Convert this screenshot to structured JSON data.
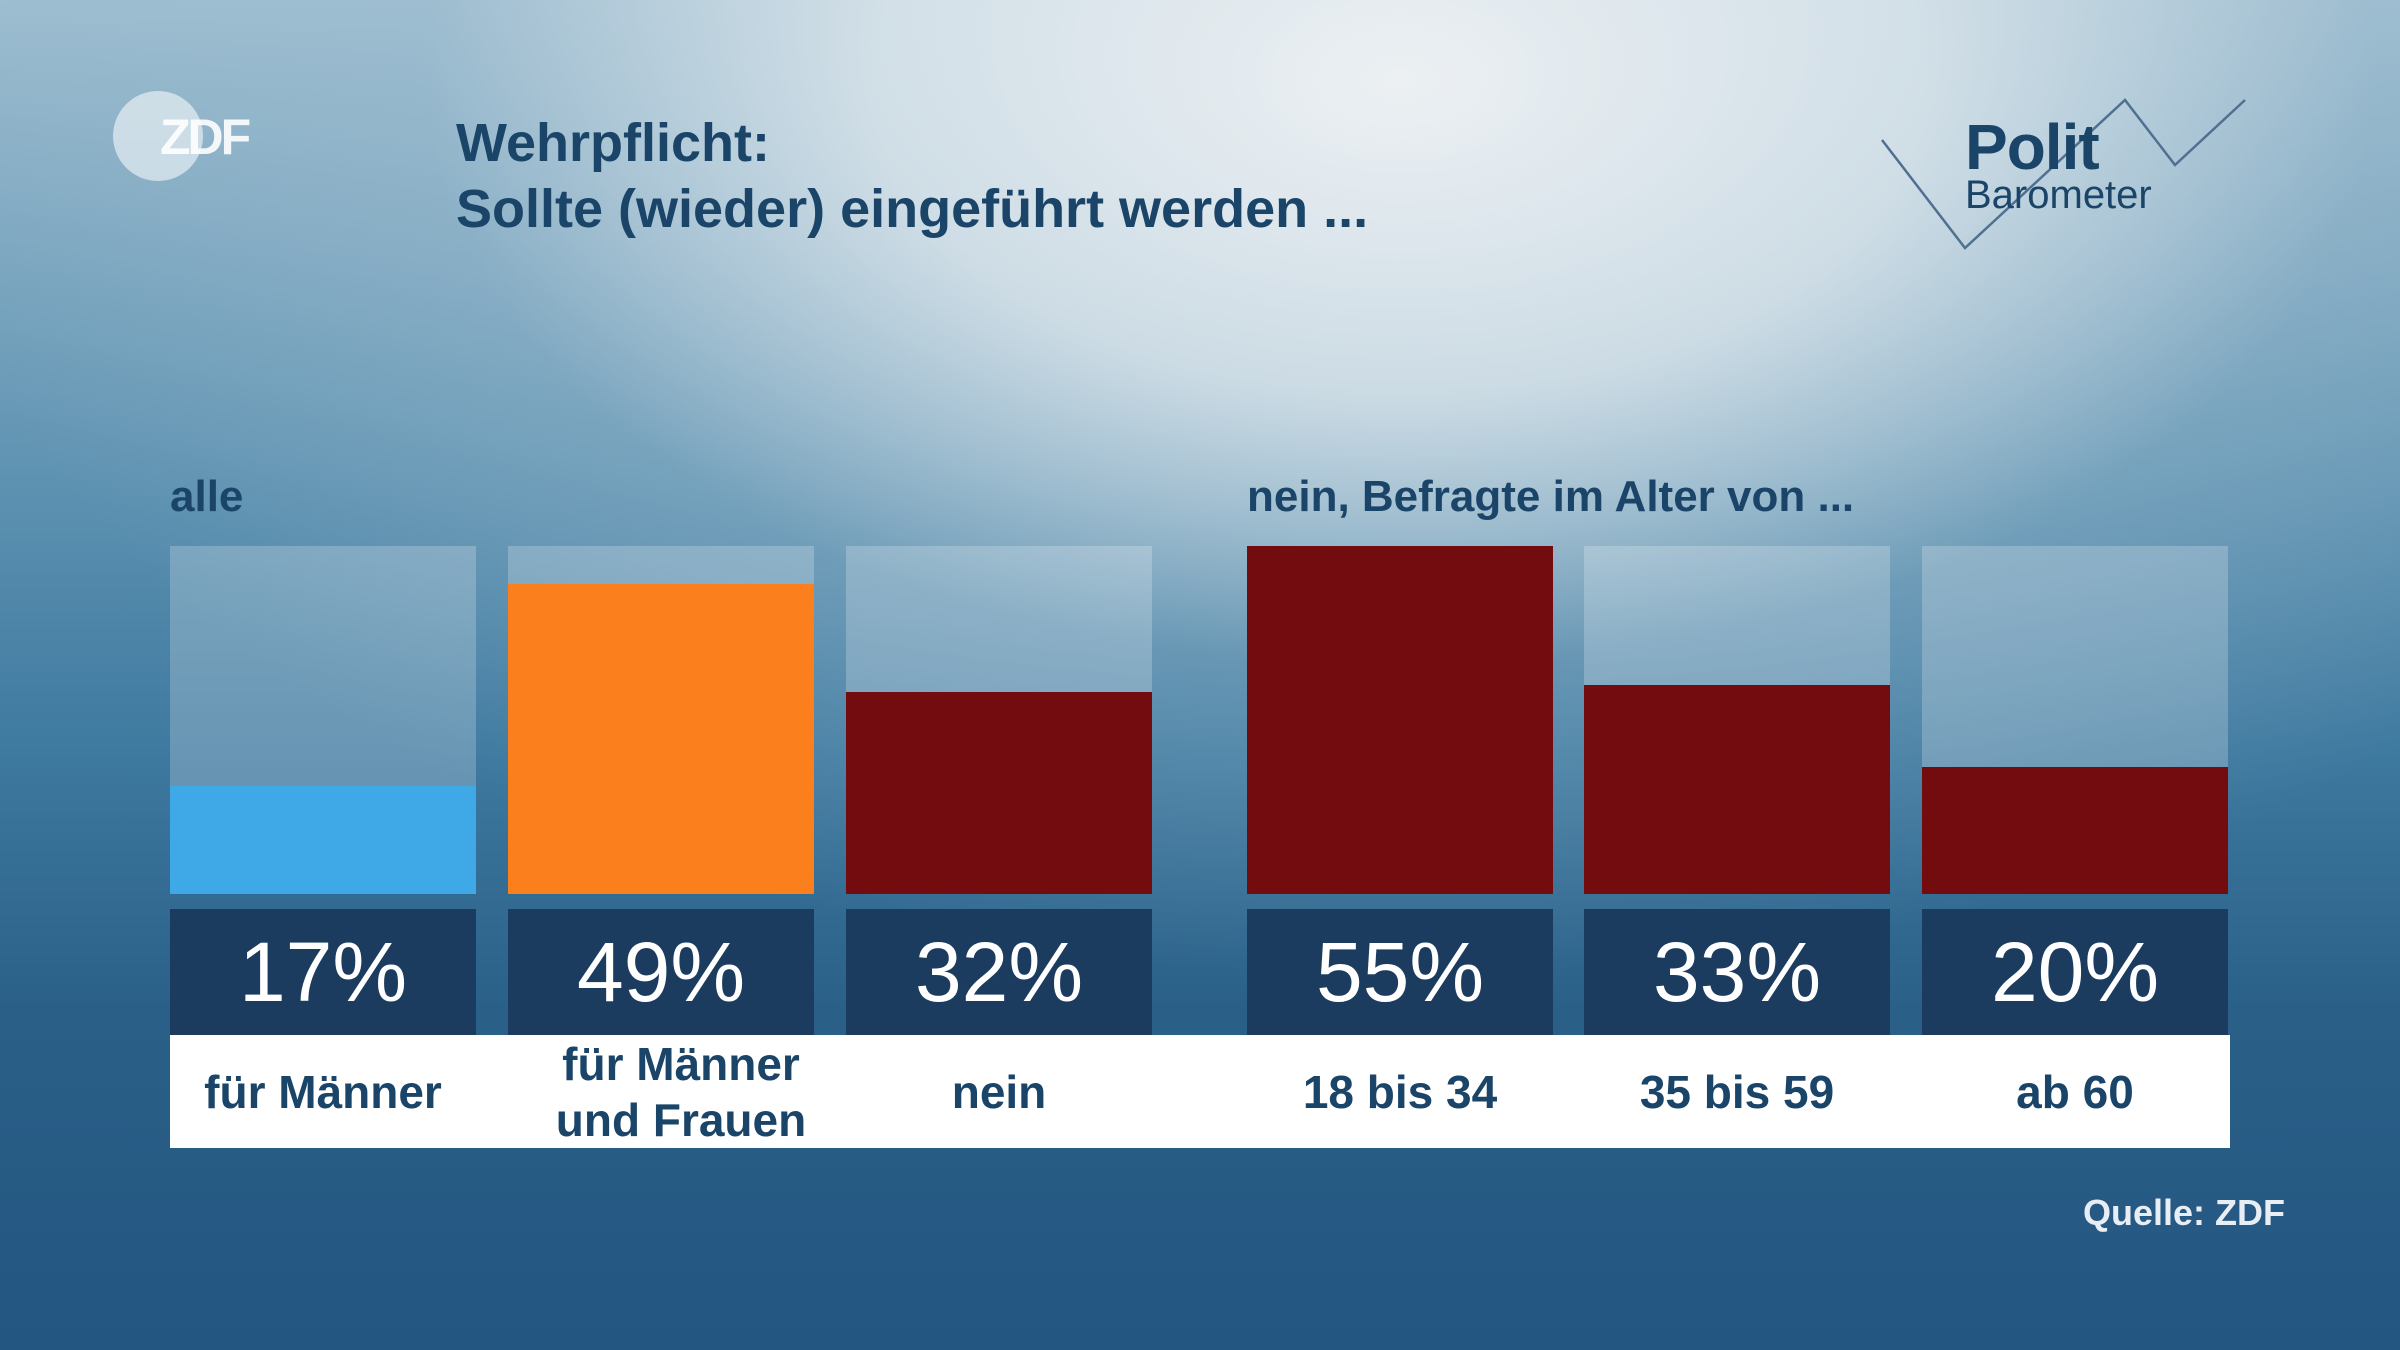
{
  "logo": {
    "text": "ZDF"
  },
  "title": {
    "line1": "Wehrpflicht:",
    "line2": "Sollte (wieder) eingeführt werden ..."
  },
  "brand": {
    "polit": "Polit",
    "barometer": "Barometer"
  },
  "source": "Quelle: ZDF",
  "chart_data": {
    "type": "bar",
    "title": "Wehrpflicht: Sollte (wieder) eingeführt werden ...",
    "ylim": [
      0,
      55
    ],
    "groups": [
      {
        "label": "alle",
        "categories": [
          "für Männer",
          "für Männer und Frauen",
          "nein"
        ],
        "values": [
          17,
          49,
          32
        ],
        "value_labels": [
          "17%",
          "49%",
          "32%"
        ],
        "colors": [
          "#3fa8e6",
          "#fb7f1c",
          "#730c0e"
        ]
      },
      {
        "label": "nein, Befragte im Alter von ...",
        "categories": [
          "18 bis 34",
          "35 bis 59",
          "ab 60"
        ],
        "values": [
          55,
          33,
          20
        ],
        "value_labels": [
          "55%",
          "33%",
          "20%"
        ],
        "colors": [
          "#730c0e",
          "#730c0e",
          "#730c0e"
        ]
      }
    ]
  }
}
